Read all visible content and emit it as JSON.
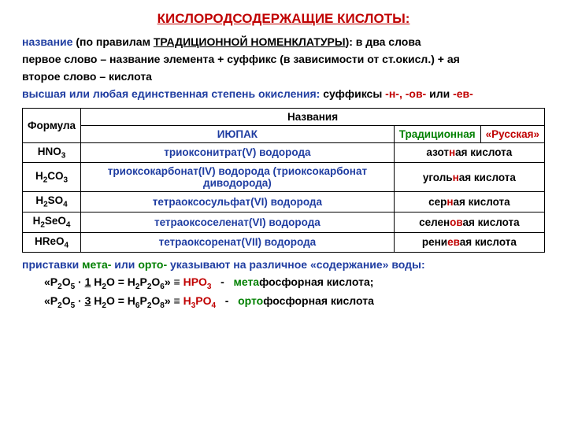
{
  "title": "КИСЛОРОДСОДЕРЖАЩИЕ КИСЛОТЫ:",
  "intro": {
    "l1a": "название",
    "l1b": " (по правилам ",
    "l1c": "ТРАДИЦИОННОЙ НОМЕНКЛАТУРЫ",
    "l1d": "): в два слова",
    "l2": "первое слово – название элемента + суффикс (в зависимости от ст.окисл.) + ая",
    "l3": "второе слово – кислота",
    "l4a": "высшая или любая единственная степень окисления:",
    "l4b": "  суффиксы ",
    "l4s1": "-н-,",
    "l4s2": " -ов-",
    "l4s3": " или ",
    "l4s4": "-ев-"
  },
  "table": {
    "head": {
      "formula": "Формула",
      "names": "Названия",
      "iupac": "ИЮПАК",
      "trad": "Традиционная",
      "rus": "«Русская»"
    },
    "rows": [
      {
        "formula": "HNO<sub>3</sub>",
        "iupac": "триоксонитрат(V) водорода",
        "trad_pre": "азот",
        "trad_suf": "н",
        "trad_post": "ая кислота"
      },
      {
        "formula": "H<sub>2</sub>CO<sub>3</sub>",
        "iupac": "триоксокарбонат(IV) водорода (триоксокарбонат диводорода)",
        "trad_pre": "уголь",
        "trad_suf": "н",
        "trad_post": "ая кислота"
      },
      {
        "formula": "H<sub>2</sub>SO<sub>4</sub>",
        "iupac": "тетраоксосульфат(VI) водорода",
        "trad_pre": "сер",
        "trad_suf": "н",
        "trad_post": "ая кислота"
      },
      {
        "formula": "H<sub>2</sub>SeO<sub>4</sub>",
        "iupac": "тетраоксоселенат(VI) водорода",
        "trad_pre": "селен",
        "trad_suf": "ов",
        "trad_post": "ая кислота"
      },
      {
        "formula": "HReO<sub>4</sub>",
        "iupac": "тетраоксоренат(VII) водорода",
        "trad_pre": "рени",
        "trad_suf": "ев",
        "trad_post": "ая кислота"
      }
    ]
  },
  "after": {
    "l1a": "приставки ",
    "l1b": "мета-",
    "l1c": " или ",
    "l1d": "орто-",
    "l1e": " указывают на различное «содержание» воды:"
  },
  "eq1": {
    "a": "«P",
    "b": "O",
    "c": " · ",
    "d": "1",
    "e": " H",
    "f": "O = H",
    "g": "P",
    "h": "O",
    "i": "» ≡ ",
    "sim": "HPO",
    "dash": "   -   ",
    "pre": "мета",
    "post": "фосфорная кислота;"
  },
  "eq2": {
    "a": "«P",
    "b": "O",
    "c": " · ",
    "d": "3",
    "e": " H",
    "f": "O = H",
    "g": "P",
    "h": "O",
    "i": "» ≡ ",
    "sim": "H",
    "sim2": "PO",
    "dash": "   -   ",
    "pre": "орто",
    "post": "фосфорная кислота"
  }
}
